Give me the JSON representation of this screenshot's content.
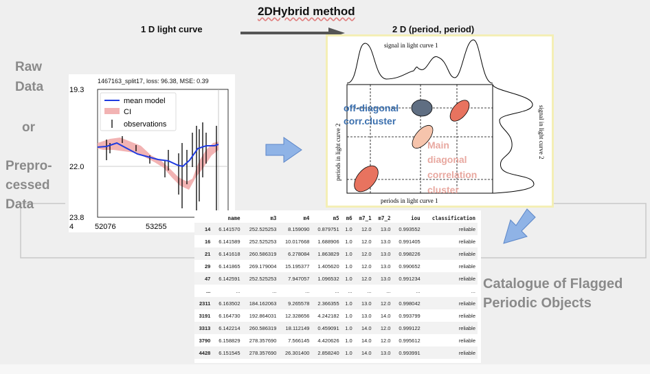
{
  "title": "2DHybrid method",
  "lc_header": "1 D light curve",
  "pp_header": "2 D (period, period)",
  "left": {
    "raw": "Raw",
    "data": "Data",
    "or": "or",
    "prepro": "Prepro-",
    "cessed": "cessed",
    "data2": "Data"
  },
  "catalogue": {
    "line1": "Catalogue of Flagged",
    "line2": "Periodic Objects"
  },
  "lightcurve": {
    "title": "1467163_split17, loss: 96.38, MSE: 0.39",
    "yticks": [
      "19.3",
      "22.0",
      "23.8"
    ],
    "xticks": [
      "52076",
      "53255"
    ],
    "xtick_left_fragment": "4",
    "legend": [
      "mean model",
      "CI",
      "observations"
    ]
  },
  "hybrid": {
    "top_label": "signal in light curve 1",
    "right_label": "signal in light curve 2",
    "left_label": "periods in light curve 2",
    "bottom_label": "periods in light curve 1",
    "offdiag": "off-diagonal corr.cluster",
    "main": [
      "Main",
      "diagonal",
      "correlation",
      "cluster"
    ]
  },
  "colors": {
    "blue_text": "#3a6fae",
    "pink_text": "#e8a8a0",
    "arrow": "#8fb3e6",
    "dark_arrow": "#555555"
  },
  "table": {
    "columns": [
      "",
      "name",
      "m3",
      "m4",
      "m5",
      "m6",
      "m7_1",
      "m7_2",
      "iou",
      "classification"
    ],
    "rows": [
      [
        "14",
        "6.141570",
        "252.525253",
        "8.159090",
        "0.879751",
        "1.0",
        "12.0",
        "13.0",
        "0.993552",
        "reliable"
      ],
      [
        "16",
        "6.141589",
        "252.525253",
        "10.017668",
        "1.688906",
        "1.0",
        "12.0",
        "13.0",
        "0.991405",
        "reliable"
      ],
      [
        "21",
        "6.141618",
        "260.586319",
        "6.278084",
        "1.863829",
        "1.0",
        "12.0",
        "13.0",
        "0.998226",
        "reliable"
      ],
      [
        "29",
        "6.141865",
        "269.179004",
        "15.195377",
        "1.405620",
        "1.0",
        "12.0",
        "13.0",
        "0.990652",
        "reliable"
      ],
      [
        "47",
        "6.142591",
        "252.525253",
        "7.947057",
        "1.096532",
        "1.0",
        "12.0",
        "13.0",
        "0.991234",
        "reliable"
      ],
      [
        "...",
        "...",
        "...",
        "...",
        "...",
        "...",
        "...",
        "...",
        "...",
        "..."
      ],
      [
        "2311",
        "6.163502",
        "184.162063",
        "9.265578",
        "2.366355",
        "1.0",
        "13.0",
        "12.0",
        "0.998042",
        "reliable"
      ],
      [
        "3191",
        "6.164730",
        "192.864031",
        "12.328656",
        "4.242182",
        "1.0",
        "13.0",
        "14.0",
        "0.993799",
        "reliable"
      ],
      [
        "3313",
        "6.142214",
        "260.586319",
        "18.112149",
        "0.459091",
        "1.0",
        "14.0",
        "12.0",
        "0.999122",
        "reliable"
      ],
      [
        "3790",
        "6.158829",
        "278.357690",
        "7.566145",
        "4.420626",
        "1.0",
        "14.0",
        "12.0",
        "0.995612",
        "reliable"
      ],
      [
        "4428",
        "6.151545",
        "278.357690",
        "26.301400",
        "2.858240",
        "1.0",
        "14.0",
        "13.0",
        "0.993991",
        "reliable"
      ]
    ]
  }
}
